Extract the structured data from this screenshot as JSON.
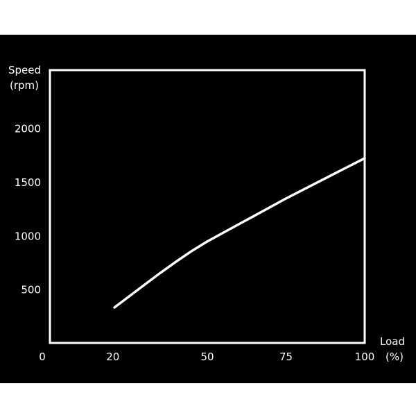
{
  "chart_data": {
    "type": "line",
    "ylabel_line1": "Speed",
    "ylabel_line2": "(rpm)",
    "xlabel_line1": "Load",
    "xlabel_line2": "(%)",
    "x_ticks": [
      "0",
      "20",
      "50",
      "75",
      "100"
    ],
    "x_tick_values": [
      0,
      20,
      50,
      75,
      100
    ],
    "y_ticks": [
      "500",
      "1000",
      "1500",
      "2000"
    ],
    "y_tick_values": [
      500,
      1000,
      1500,
      2000
    ],
    "xlim": [
      0,
      100
    ],
    "ylim": [
      0,
      2540
    ],
    "grid": "horizontal",
    "series": [
      {
        "x": [
          20.5,
          25,
          30,
          35,
          40,
          45,
          50,
          55,
          60,
          65,
          70,
          75,
          80,
          85,
          90,
          95,
          100
        ],
        "y": [
          330,
          430,
          540,
          650,
          755,
          855,
          945,
          1025,
          1105,
          1185,
          1265,
          1345,
          1420,
          1495,
          1570,
          1645,
          1720
        ]
      }
    ],
    "colors": {
      "background": "#000000",
      "frame": "#ffffff",
      "line": "#ffffff",
      "grid": "#555555"
    }
  }
}
